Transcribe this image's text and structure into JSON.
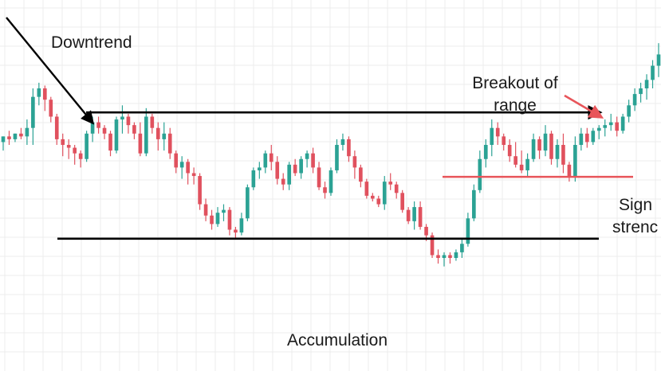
{
  "chart_data": {
    "type": "candlestick",
    "title": "",
    "xlabel": "",
    "ylabel": "",
    "grid": true,
    "colors": {
      "up": "#2ba294",
      "down": "#e0515e",
      "resistance_line": "#000000",
      "support_line": "#000000",
      "strength_line": "#e8555a",
      "breakout_arrow": "#e8555a",
      "downtrend_arrow": "#000000",
      "grid": "#ececec"
    },
    "price_range": [
      0,
      100
    ],
    "levels": {
      "resistance": 71.5,
      "support": 26.8,
      "sign_of_strength": 48.7
    },
    "candles": [
      [
        61,
        63,
        58,
        63
      ],
      [
        63,
        65,
        60,
        62
      ],
      [
        62,
        64,
        61,
        64
      ],
      [
        64,
        66,
        62,
        63
      ],
      [
        63,
        69,
        60,
        66
      ],
      [
        66,
        80,
        60,
        77
      ],
      [
        77,
        82,
        74,
        80
      ],
      [
        80,
        81,
        72,
        76
      ],
      [
        76,
        77,
        68,
        70
      ],
      [
        70,
        71,
        60,
        62
      ],
      [
        62,
        64,
        56,
        60
      ],
      [
        60,
        62,
        55,
        59
      ],
      [
        59,
        60,
        53,
        57
      ],
      [
        57,
        58,
        52,
        55
      ],
      [
        55,
        65,
        54,
        64
      ],
      [
        64,
        70,
        61,
        68
      ],
      [
        68,
        70,
        64,
        66
      ],
      [
        66,
        67,
        62,
        64
      ],
      [
        64,
        65,
        56,
        58
      ],
      [
        58,
        70,
        57,
        69
      ],
      [
        69,
        74,
        64,
        70
      ],
      [
        70,
        71,
        64,
        67
      ],
      [
        67,
        68,
        62,
        64
      ],
      [
        64,
        68,
        56,
        57
      ],
      [
        57,
        73,
        56,
        70
      ],
      [
        70,
        71,
        64,
        66
      ],
      [
        66,
        68,
        58,
        62
      ],
      [
        62,
        68,
        58,
        64
      ],
      [
        64,
        66,
        55,
        57
      ],
      [
        57,
        58,
        50,
        52
      ],
      [
        52,
        56,
        48,
        54
      ],
      [
        54,
        55,
        46,
        50
      ],
      [
        50,
        52,
        46,
        49
      ],
      [
        49,
        50,
        37,
        39
      ],
      [
        39,
        41,
        33,
        35
      ],
      [
        35,
        37,
        30,
        32
      ],
      [
        32,
        38,
        31,
        36
      ],
      [
        36,
        39,
        33,
        37
      ],
      [
        37,
        38,
        28,
        30
      ],
      [
        30,
        31,
        27,
        29
      ],
      [
        29,
        36,
        28,
        34
      ],
      [
        34,
        46,
        33,
        45
      ],
      [
        45,
        52,
        44,
        51
      ],
      [
        51,
        54,
        48,
        52
      ],
      [
        52,
        58,
        50,
        57
      ],
      [
        57,
        60,
        51,
        54
      ],
      [
        54,
        56,
        46,
        48
      ],
      [
        48,
        50,
        44,
        46
      ],
      [
        46,
        54,
        44,
        53
      ],
      [
        53,
        55,
        49,
        50
      ],
      [
        50,
        56,
        48,
        55
      ],
      [
        55,
        58,
        52,
        57
      ],
      [
        57,
        59,
        50,
        52
      ],
      [
        52,
        54,
        44,
        45
      ],
      [
        45,
        47,
        41,
        43
      ],
      [
        43,
        52,
        42,
        51
      ],
      [
        51,
        62,
        50,
        60
      ],
      [
        60,
        64,
        58,
        62
      ],
      [
        62,
        63,
        54,
        56
      ],
      [
        56,
        58,
        48,
        52
      ],
      [
        52,
        53,
        45,
        47
      ],
      [
        47,
        48,
        41,
        42
      ],
      [
        42,
        43,
        40,
        41
      ],
      [
        41,
        42,
        38,
        39
      ],
      [
        39,
        49,
        37,
        47
      ],
      [
        47,
        50,
        44,
        46
      ],
      [
        46,
        47,
        41,
        43
      ],
      [
        43,
        44,
        36,
        37
      ],
      [
        37,
        38,
        32,
        33
      ],
      [
        33,
        40,
        30,
        38
      ],
      [
        38,
        40,
        30,
        31
      ],
      [
        31,
        32,
        26,
        28
      ],
      [
        28,
        29,
        20,
        21
      ],
      [
        21,
        23,
        18,
        20
      ],
      [
        20,
        22,
        17,
        21
      ],
      [
        21,
        22,
        18,
        20
      ],
      [
        20,
        23,
        19,
        22
      ],
      [
        22,
        27,
        20,
        25
      ],
      [
        25,
        36,
        24,
        34
      ],
      [
        34,
        46,
        33,
        44
      ],
      [
        44,
        58,
        43,
        55
      ],
      [
        55,
        62,
        52,
        60
      ],
      [
        60,
        69,
        56,
        66
      ],
      [
        66,
        68,
        60,
        63
      ],
      [
        63,
        64,
        58,
        60
      ],
      [
        60,
        62,
        54,
        56
      ],
      [
        56,
        61,
        52,
        53
      ],
      [
        53,
        58,
        50,
        51
      ],
      [
        51,
        57,
        49,
        55
      ],
      [
        55,
        64,
        54,
        62
      ],
      [
        62,
        63,
        55,
        58
      ],
      [
        58,
        67,
        56,
        64
      ],
      [
        64,
        65,
        53,
        55
      ],
      [
        55,
        62,
        52,
        60
      ],
      [
        60,
        64,
        50,
        53
      ],
      [
        53,
        54,
        47,
        49
      ],
      [
        49,
        63,
        47,
        60
      ],
      [
        60,
        66,
        58,
        64
      ],
      [
        64,
        66,
        59,
        61
      ],
      [
        61,
        66,
        60,
        65
      ],
      [
        65,
        67,
        62,
        66
      ],
      [
        66,
        69,
        63,
        67
      ],
      [
        67,
        71,
        65,
        68
      ],
      [
        68,
        70,
        63,
        65
      ],
      [
        65,
        71,
        64,
        70
      ],
      [
        70,
        76,
        68,
        74
      ],
      [
        74,
        80,
        72,
        78
      ],
      [
        78,
        82,
        75,
        80
      ],
      [
        80,
        85,
        76,
        83
      ],
      [
        83,
        90,
        80,
        88
      ],
      [
        88,
        96,
        84,
        92
      ]
    ],
    "annotations": {
      "downtrend": "Downtrend",
      "breakout_line1": "Breakout of",
      "breakout_line2": "range",
      "sign_line1": "Sign",
      "sign_line2": "strenc",
      "accumulation": "Accumulation"
    }
  }
}
